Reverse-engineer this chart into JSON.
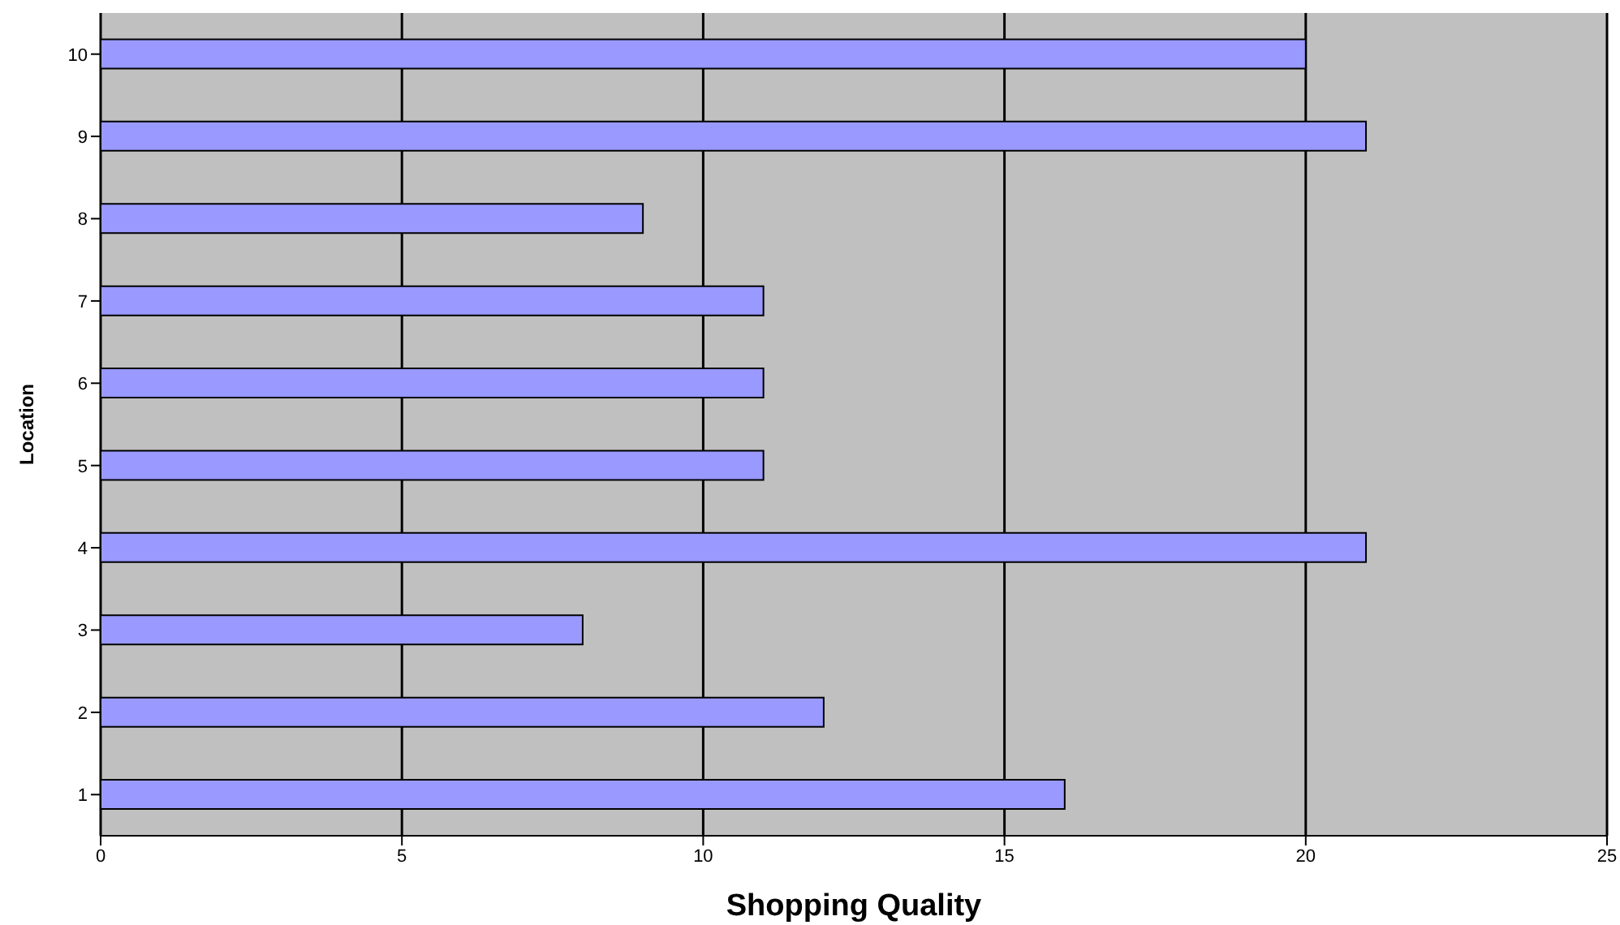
{
  "chart_data": {
    "type": "bar",
    "orientation": "horizontal",
    "xlabel": "Shopping Quality",
    "ylabel": "Location",
    "categories": [
      "10",
      "9",
      "8",
      "7",
      "6",
      "5",
      "4",
      "3",
      "2",
      "1"
    ],
    "values": [
      20,
      21,
      9,
      11,
      11,
      11,
      21,
      8,
      12,
      16
    ],
    "color": "#9999ff",
    "xlim": [
      0,
      25
    ],
    "xticks": [
      0,
      5,
      10,
      15,
      20,
      25
    ],
    "grid": "x"
  }
}
